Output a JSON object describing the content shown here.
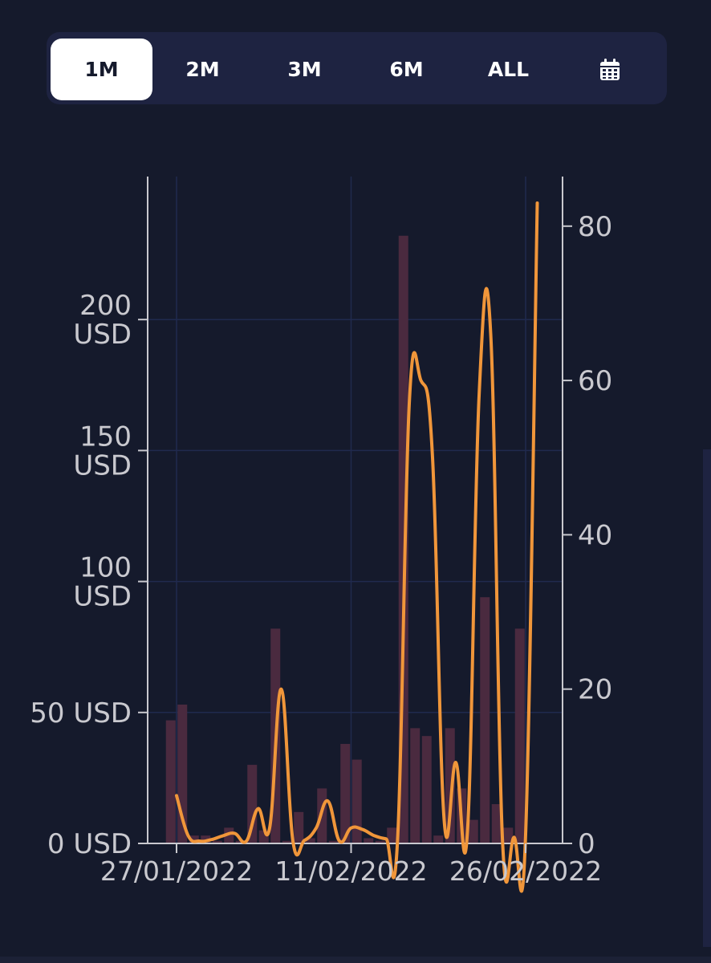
{
  "range_tabs": {
    "items": [
      {
        "label": "1M",
        "active": true
      },
      {
        "label": "2M",
        "active": false
      },
      {
        "label": "3M",
        "active": false
      },
      {
        "label": "6M",
        "active": false
      },
      {
        "label": "ALL",
        "active": false
      }
    ],
    "calendar_icon": "calendar-icon"
  },
  "colors": {
    "background": "#151a2c",
    "tab_bar": "#1e2341",
    "line": "#f0963a",
    "bars": "#4a2a3f",
    "grid": "#202a4e",
    "axis": "#c9c9cf"
  },
  "chart_data": {
    "type": "bar+line",
    "title": "",
    "xlabel": "",
    "ylabel": "",
    "x_ticks": [
      "27/01/2022",
      "11/02/2022",
      "26/02/2022"
    ],
    "left_axis": {
      "ticks": [
        {
          "value": 0,
          "label": "0 USD"
        },
        {
          "value": 50,
          "label": "50 USD"
        },
        {
          "value": 100,
          "label": "100 USD"
        },
        {
          "value": 150,
          "label": "150 USD"
        },
        {
          "value": 200,
          "label": "200 USD"
        }
      ],
      "range": [
        0,
        254
      ]
    },
    "right_axis": {
      "ticks": [
        0,
        20,
        40,
        60,
        80
      ],
      "range": [
        0,
        86
      ]
    },
    "x": [
      "2022-01-26",
      "2022-01-27",
      "2022-01-28",
      "2022-01-29",
      "2022-01-30",
      "2022-01-31",
      "2022-02-01",
      "2022-02-02",
      "2022-02-03",
      "2022-02-04",
      "2022-02-05",
      "2022-02-06",
      "2022-02-07",
      "2022-02-08",
      "2022-02-09",
      "2022-02-10",
      "2022-02-11",
      "2022-02-12",
      "2022-02-13",
      "2022-02-14",
      "2022-02-15",
      "2022-02-16",
      "2022-02-17",
      "2022-02-18",
      "2022-02-19",
      "2022-02-20",
      "2022-02-21",
      "2022-02-22",
      "2022-02-23",
      "2022-02-24",
      "2022-02-25",
      "2022-02-26"
    ],
    "series": [
      {
        "axis": "left",
        "kind": "bar",
        "values": [
          47,
          53,
          3,
          3,
          1,
          6,
          1,
          30,
          5,
          82,
          1,
          12,
          2,
          21,
          1,
          38,
          32,
          2,
          1,
          6,
          232,
          44,
          41,
          3,
          44,
          21,
          9,
          94,
          15,
          6,
          82,
          0
        ]
      },
      {
        "axis": "right",
        "kind": "line",
        "values": [
          6.2,
          1.0,
          0.3,
          0.5,
          1.0,
          1.3,
          0.3,
          4.5,
          2.0,
          20.0,
          0.3,
          0.4,
          2.0,
          5.5,
          0.3,
          2.0,
          1.8,
          1.0,
          0.6,
          0.6,
          57,
          60,
          50,
          3.0,
          10.5,
          1.5,
          58,
          66,
          0.8,
          0.8,
          1.2,
          83
        ]
      }
    ]
  }
}
